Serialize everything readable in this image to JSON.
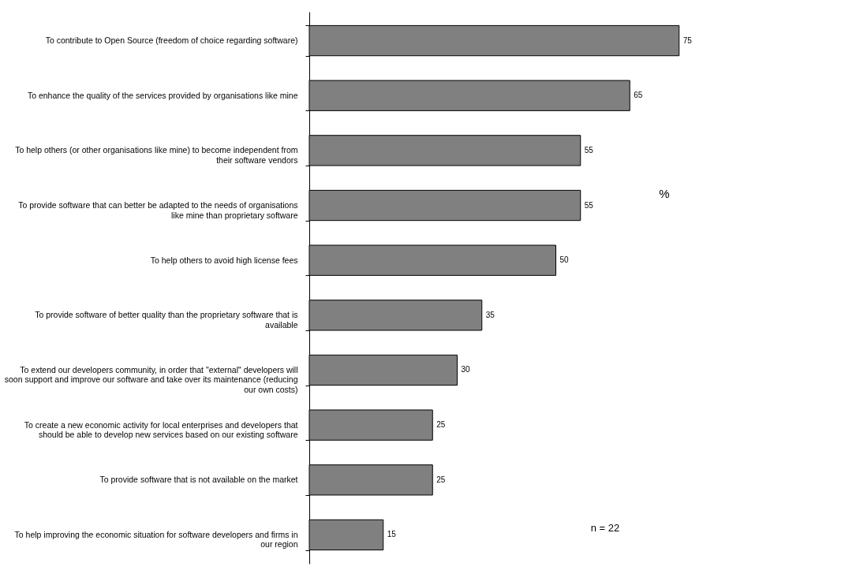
{
  "chart_data": {
    "type": "bar",
    "orientation": "horizontal",
    "data_labels": true,
    "color": "#808080",
    "categories": [
      "To contribute to Open Source (freedom of choice regarding software)",
      "To enhance the quality of the services provided by organisations like mine",
      "To help others (or other organisations like mine) to become independent from their software vendors",
      "To provide software that can better be adapted to the needs of organisations like mine than proprietary software",
      "To help others to avoid high license fees",
      "To provide software of better quality than the proprietary software that is available",
      "To extend our developers community, in order that \"external\" developers will soon support and improve our software and take over its maintenance (reducing our own costs)",
      "To create a new economic activity for local enterprises and developers that should be able to develop new services based on our existing software",
      "To provide software that is not available on the market",
      "To help improving the economic situation for software developers and firms in our region"
    ],
    "values": [
      75,
      65,
      55,
      55,
      50,
      35,
      30,
      25,
      25,
      15
    ],
    "annotations": [
      "%",
      "n = 22"
    ]
  }
}
